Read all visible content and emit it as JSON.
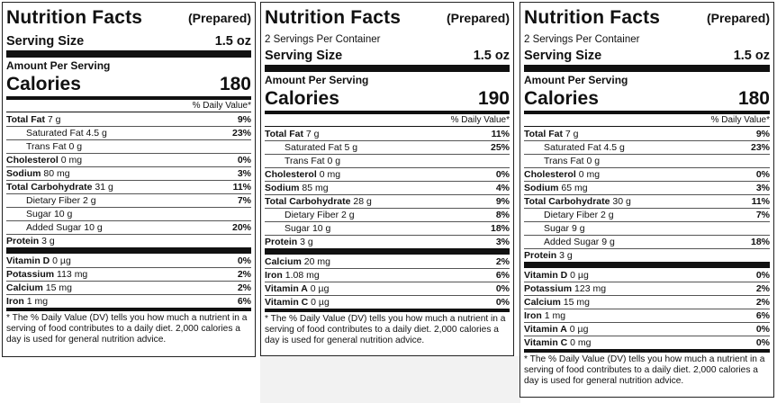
{
  "panels": [
    {
      "title": "Nutrition Facts",
      "prepared": "(Prepared)",
      "servings_per_container": "",
      "serving_size_label": "Serving Size",
      "serving_size": "1.5 oz",
      "amount_per_serving": "Amount Per Serving",
      "calories_label": "Calories",
      "calories": "180",
      "dv_header": "% Daily Value*",
      "nutrients": [
        {
          "name": "Total Fat",
          "amount": "7 g",
          "dv": "9%",
          "bold": true,
          "indent": false
        },
        {
          "name": "Saturated Fat",
          "amount": "4.5 g",
          "dv": "23%",
          "bold": false,
          "indent": true
        },
        {
          "name": "Trans Fat",
          "amount": "0 g",
          "dv": "",
          "bold": false,
          "indent": true
        },
        {
          "name": "Cholesterol",
          "amount": "0 mg",
          "dv": "0%",
          "bold": true,
          "indent": false
        },
        {
          "name": "Sodium",
          "amount": "80 mg",
          "dv": "3%",
          "bold": true,
          "indent": false
        },
        {
          "name": "Total Carbohydrate",
          "amount": "31 g",
          "dv": "11%",
          "bold": true,
          "indent": false
        },
        {
          "name": "Dietary Fiber",
          "amount": "2 g",
          "dv": "7%",
          "bold": false,
          "indent": true
        },
        {
          "name": "Sugar",
          "amount": "10 g",
          "dv": "",
          "bold": false,
          "indent": true
        },
        {
          "name": "Added Sugar",
          "amount": "10 g",
          "dv": "20%",
          "bold": false,
          "indent": true
        },
        {
          "name": "Protein",
          "amount": "3 g",
          "dv": "",
          "bold": true,
          "indent": false
        }
      ],
      "vitamins": [
        {
          "name": "Vitamin D",
          "amount": "0 µg",
          "dv": "0%"
        },
        {
          "name": "Potassium",
          "amount": "113 mg",
          "dv": "2%"
        },
        {
          "name": "Calcium",
          "amount": "15 mg",
          "dv": "2%"
        },
        {
          "name": "Iron",
          "amount": "1 mg",
          "dv": "6%"
        }
      ],
      "footnote": "* The % Daily Value (DV) tells you how much a nutrient in a serving of food contributes to a daily diet. 2,000 calories a day is used for general nutrition advice."
    },
    {
      "title": "Nutrition Facts",
      "prepared": "(Prepared)",
      "servings_per_container": "2 Servings Per Container",
      "serving_size_label": "Serving Size",
      "serving_size": "1.5 oz",
      "amount_per_serving": "Amount Per Serving",
      "calories_label": "Calories",
      "calories": "190",
      "dv_header": "% Daily Value*",
      "nutrients": [
        {
          "name": "Total Fat",
          "amount": "7 g",
          "dv": "11%",
          "bold": true,
          "indent": false
        },
        {
          "name": "Saturated Fat",
          "amount": "5 g",
          "dv": "25%",
          "bold": false,
          "indent": true
        },
        {
          "name": "Trans Fat",
          "amount": "0 g",
          "dv": "",
          "bold": false,
          "indent": true
        },
        {
          "name": "Cholesterol",
          "amount": "0 mg",
          "dv": "0%",
          "bold": true,
          "indent": false
        },
        {
          "name": "Sodium",
          "amount": "85 mg",
          "dv": "4%",
          "bold": true,
          "indent": false
        },
        {
          "name": "Total Carbohydrate",
          "amount": "28 g",
          "dv": "9%",
          "bold": true,
          "indent": false
        },
        {
          "name": "Dietary Fiber",
          "amount": "2 g",
          "dv": "8%",
          "bold": false,
          "indent": true
        },
        {
          "name": "Sugar",
          "amount": "10 g",
          "dv": "18%",
          "bold": false,
          "indent": true
        },
        {
          "name": "Protein",
          "amount": "3 g",
          "dv": "3%",
          "bold": true,
          "indent": false
        }
      ],
      "vitamins": [
        {
          "name": "Calcium",
          "amount": "20 mg",
          "dv": "2%"
        },
        {
          "name": "Iron",
          "amount": "1.08 mg",
          "dv": "6%"
        },
        {
          "name": "Vitamin A",
          "amount": "0 µg",
          "dv": "0%"
        },
        {
          "name": "Vitamin C",
          "amount": "0 µg",
          "dv": "0%"
        }
      ],
      "footnote": "* The % Daily Value (DV) tells you how much a nutrient in a serving of food contributes to a daily diet. 2,000 calories a day is used for general nutrition advice."
    },
    {
      "title": "Nutrition Facts",
      "prepared": "(Prepared)",
      "servings_per_container": "2 Servings Per Container",
      "serving_size_label": "Serving Size",
      "serving_size": "1.5 oz",
      "amount_per_serving": "Amount Per Serving",
      "calories_label": "Calories",
      "calories": "180",
      "dv_header": "% Daily Value*",
      "nutrients": [
        {
          "name": "Total Fat",
          "amount": "7 g",
          "dv": "9%",
          "bold": true,
          "indent": false
        },
        {
          "name": "Saturated Fat",
          "amount": "4.5 g",
          "dv": "23%",
          "bold": false,
          "indent": true
        },
        {
          "name": "Trans Fat",
          "amount": "0 g",
          "dv": "",
          "bold": false,
          "indent": true
        },
        {
          "name": "Cholesterol",
          "amount": "0 mg",
          "dv": "0%",
          "bold": true,
          "indent": false
        },
        {
          "name": "Sodium",
          "amount": "65 mg",
          "dv": "3%",
          "bold": true,
          "indent": false
        },
        {
          "name": "Total Carbohydrate",
          "amount": "30 g",
          "dv": "11%",
          "bold": true,
          "indent": false
        },
        {
          "name": "Dietary Fiber",
          "amount": "2 g",
          "dv": "7%",
          "bold": false,
          "indent": true
        },
        {
          "name": "Sugar",
          "amount": "9 g",
          "dv": "",
          "bold": false,
          "indent": true
        },
        {
          "name": "Added Sugar",
          "amount": "9 g",
          "dv": "18%",
          "bold": false,
          "indent": true
        },
        {
          "name": "Protein",
          "amount": "3 g",
          "dv": "",
          "bold": true,
          "indent": false
        }
      ],
      "vitamins": [
        {
          "name": "Vitamin D",
          "amount": "0 µg",
          "dv": "0%"
        },
        {
          "name": "Potassium",
          "amount": "123 mg",
          "dv": "2%"
        },
        {
          "name": "Calcium",
          "amount": "15 mg",
          "dv": "2%"
        },
        {
          "name": "Iron",
          "amount": "1 mg",
          "dv": "6%"
        },
        {
          "name": "Vitamin A",
          "amount": "0 µg",
          "dv": "0%"
        },
        {
          "name": "Vitamin C",
          "amount": "0 mg",
          "dv": "0%"
        }
      ],
      "footnote": "* The % Daily Value (DV) tells you how much a nutrient in a serving of food contributes to a daily diet. 2,000 calories a day is used for general nutrition advice."
    }
  ]
}
